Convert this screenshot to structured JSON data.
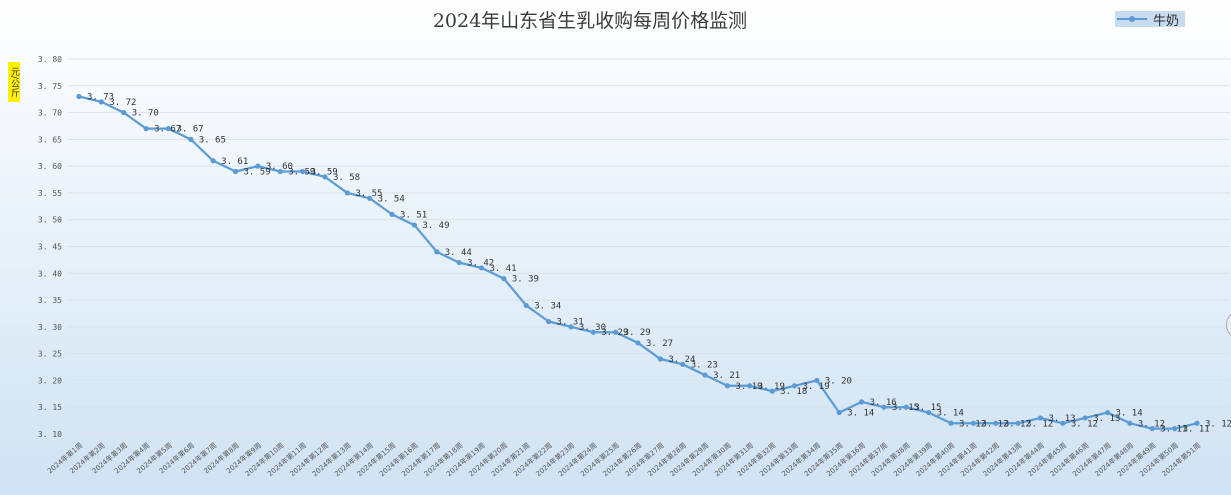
{
  "chart_data": {
    "type": "line",
    "title": "2024年山东省生乳收购每周价格监测",
    "ylabel": "元/公斤",
    "ylim": [
      3.1,
      3.8
    ],
    "yticks": [
      "3.80",
      "3.75",
      "3.70",
      "3.65",
      "3.60",
      "3.55",
      "3.50",
      "3.45",
      "3.40",
      "3.35",
      "3.30",
      "3.25",
      "3.20",
      "3.15",
      "3.10"
    ],
    "grid": true,
    "legend_position": "top-right",
    "series": [
      {
        "name": "牛奶",
        "color": "#5b9bd5",
        "values": [
          3.73,
          3.72,
          3.7,
          3.67,
          3.67,
          3.65,
          3.61,
          3.59,
          3.6,
          3.59,
          3.59,
          3.58,
          3.55,
          3.54,
          3.51,
          3.49,
          3.44,
          3.42,
          3.41,
          3.39,
          3.34,
          3.31,
          3.3,
          3.29,
          3.29,
          3.27,
          3.24,
          3.23,
          3.21,
          3.19,
          3.19,
          3.18,
          3.19,
          3.2,
          3.14,
          3.16,
          3.15,
          3.15,
          3.14,
          3.12,
          3.12,
          3.12,
          3.12,
          3.13,
          3.12,
          3.13,
          3.14,
          3.12,
          3.11,
          3.11,
          3.12
        ],
        "labels": [
          "3.73",
          "3.72",
          "3.70",
          "3.67",
          "3.67",
          "3.65",
          "3.61",
          "3.59",
          "3.60",
          "3.59",
          "3.59",
          "3.58",
          "3.55",
          "3.54",
          "3.51",
          "3.49",
          "3.44",
          "3.42",
          "3.41",
          "3.39",
          "3.34",
          "3.31",
          "3.30",
          "3.29",
          "3.29",
          "3.27",
          "3.24",
          "3.23",
          "3.21",
          "3.19",
          "3.19",
          "3.18",
          "3.19",
          "3.20",
          "3.14",
          "3.16",
          "3.15",
          "3.15",
          "3.14",
          "3.12",
          "3.12",
          "3.12",
          "3.12",
          "3.13",
          "3.12",
          "3.13",
          "3.14",
          "3.12",
          "3.11",
          "3.11",
          "3.12"
        ]
      }
    ],
    "categories": [
      "2024年第1周",
      "2024年第2周",
      "2024年第3周",
      "2024年第4周",
      "2024年第5周",
      "2024年第6周",
      "2024年第7周",
      "2024年第8周",
      "2024年第9周",
      "2024年第10周",
      "2024年第11周",
      "2024年第12周",
      "2024年第13周",
      "2024年第14周",
      "2024年第15周",
      "2024年第16周",
      "2024年第17周",
      "2024年第18周",
      "2024年第19周",
      "2024年第20周",
      "2024年第21周",
      "2024年第22周",
      "2024年第23周",
      "2024年第24周",
      "2024年第25周",
      "2024年第26周",
      "2024年第27周",
      "2024年第28周",
      "2024年第29周",
      "2024年第30周",
      "2024年第31周",
      "2024年第32周",
      "2024年第33周",
      "2024年第34周",
      "2024年第35周",
      "2024年第36周",
      "2024年第37周",
      "2024年第38周",
      "2024年第39周",
      "2024年第40周",
      "2024年第41周",
      "2024年第42周",
      "2024年第43周",
      "2024年第44周",
      "2024年第45周",
      "2024年第46周",
      "2024年第47周",
      "2024年第48周",
      "2024年第49周",
      "2024年第50周",
      "2024年第51周"
    ]
  },
  "legend": {
    "label": "牛奶"
  }
}
